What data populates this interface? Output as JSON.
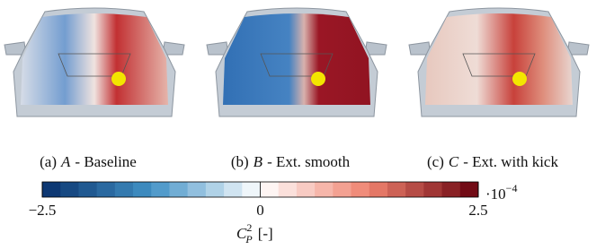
{
  "panels": [
    {
      "label": "(a)",
      "name": "A",
      "caption": "- Baseline"
    },
    {
      "label": "(b)",
      "name": "B",
      "caption": "- Ext. smooth"
    },
    {
      "label": "(c)",
      "name": "C",
      "caption": "- Ext. with kick"
    }
  ],
  "colorbar": {
    "lim": [
      -2.5,
      2.5
    ],
    "ticks": [
      {
        "value": -2.5,
        "label": "−2.5"
      },
      0,
      2.5
    ],
    "multiplier": "·10",
    "exponent": "−4",
    "symbol": "C",
    "subscript": "P",
    "superscript": "2",
    "unit": "[-]"
  }
}
